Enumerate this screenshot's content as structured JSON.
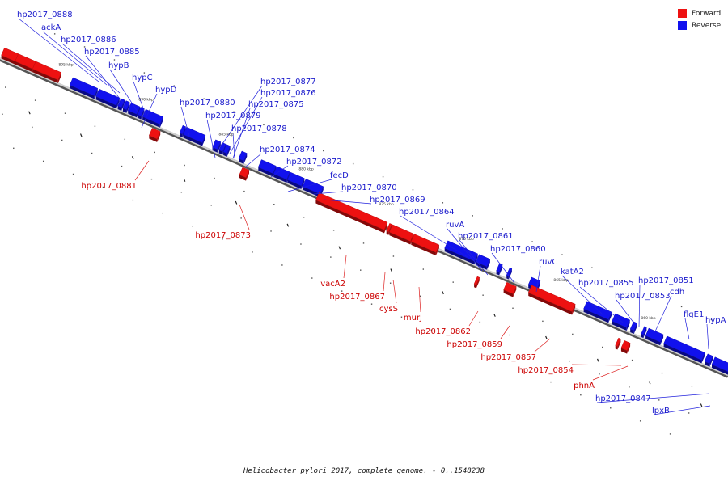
{
  "caption": "Helicobacter pylori 2017, complete genome. - 0..1548238",
  "legend": [
    {
      "label": "Forward",
      "color": "#ee1111"
    },
    {
      "label": "Reverse",
      "color": "#1111ee"
    }
  ],
  "colors": {
    "forward": "#ee1111",
    "reverse": "#1111ee",
    "forward_label": "#cc0000",
    "reverse_label": "#1a1acc"
  },
  "ticks": [
    "895 kbp",
    "890 kbp",
    "885 kbp",
    "880 kbp",
    "875 kbp",
    "870 kbp",
    "865 kbp",
    "860 kbp"
  ],
  "reverse_labels": [
    "hp2017_0888",
    "ackA",
    "hp2017_0886",
    "hp2017_0885",
    "hypB",
    "hypC",
    "hypD",
    "hp2017_0880",
    "hp2017_0879",
    "hp2017_0877",
    "hp2017_0876",
    "hp2017_0875",
    "hp2017_0878",
    "hp2017_0874",
    "hp2017_0872",
    "fecD",
    "hp2017_0870",
    "hp2017_0869",
    "hp2017_0864",
    "ruvA",
    "hp2017_0861",
    "hp2017_0860",
    "ruvC",
    "katA2",
    "hp2017_0855",
    "hp2017_0851",
    "hp2017_0853",
    "cdh",
    "flgE1",
    "hypA",
    "hp2017_0847",
    "lpxB"
  ],
  "forward_labels": [
    "hp2017_0881",
    "hp2017_0873",
    "vacA2",
    "hp2017_0867",
    "cysS",
    "murJ",
    "hp2017_0862",
    "hp2017_0859",
    "hp2017_0857",
    "hp2017_0854",
    "phnA"
  ]
}
